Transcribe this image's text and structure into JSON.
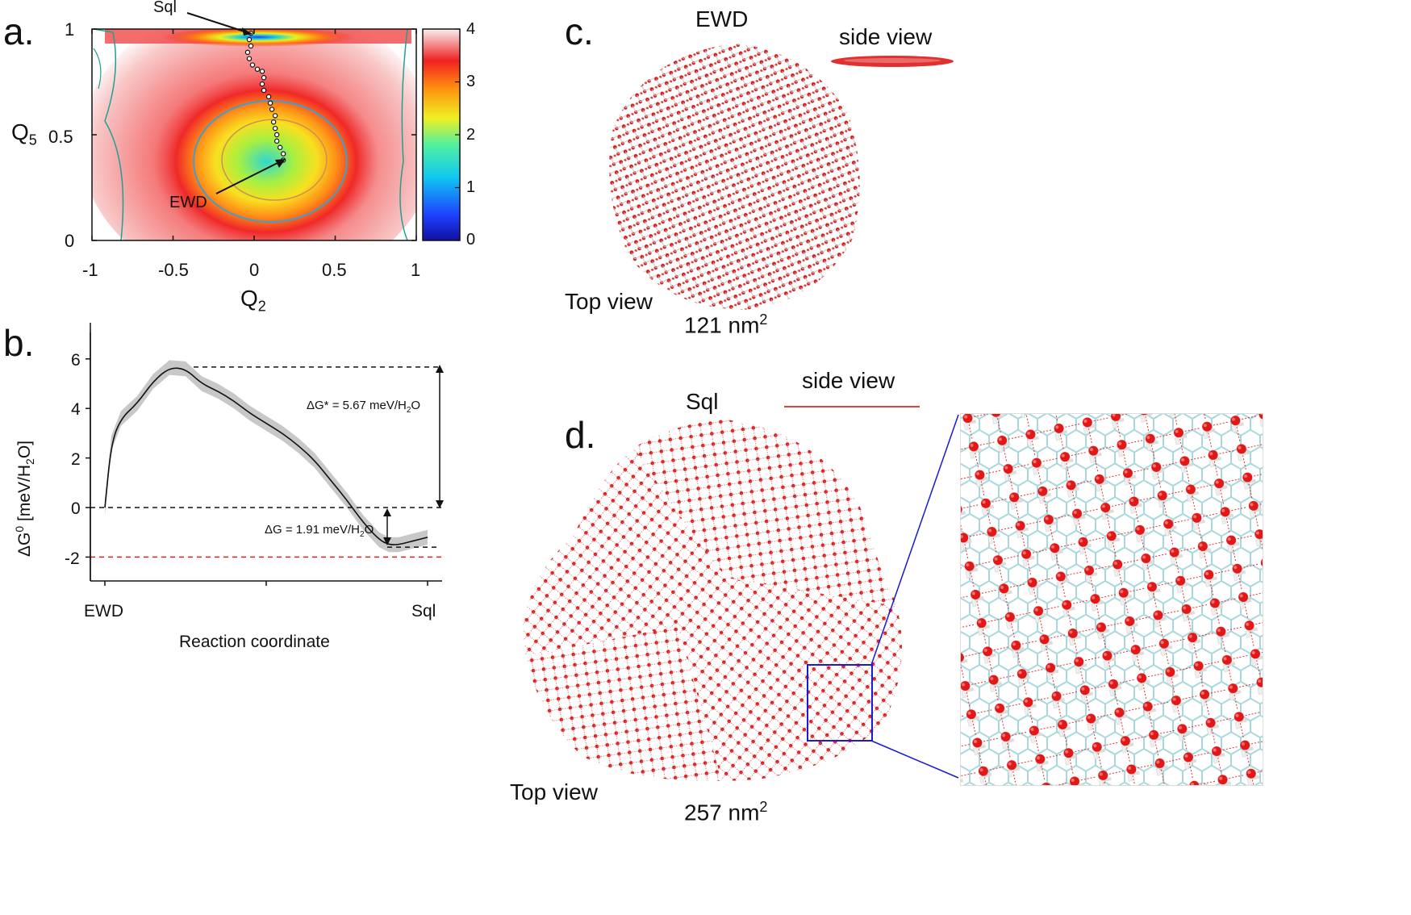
{
  "panels": {
    "a": {
      "label": "a.",
      "chart_data": {
        "type": "heatmap",
        "xlabel": "Q",
        "xlabel_sub": "2",
        "ylabel": "Q",
        "ylabel_sub": "5",
        "xlim": [
          -1,
          1
        ],
        "ylim": [
          0,
          1
        ],
        "xticks": [
          "-1",
          "-0.5",
          "0",
          "0.5",
          "1"
        ],
        "yticks": [
          "0",
          "0.5",
          "1"
        ],
        "colorbar": {
          "min": 0,
          "max": 4,
          "ticks": [
            "0",
            "1",
            "2",
            "3",
            "4"
          ]
        },
        "annotations": [
          {
            "text": "Sql",
            "x": -0.02,
            "y": 0.98
          },
          {
            "text": "EWD",
            "x": 0.18,
            "y": 0.38
          }
        ],
        "path_points": [
          [
            -0.02,
            0.98
          ],
          [
            -0.03,
            0.95
          ],
          [
            -0.02,
            0.92
          ],
          [
            -0.04,
            0.89
          ],
          [
            -0.03,
            0.86
          ],
          [
            -0.01,
            0.83
          ],
          [
            0.02,
            0.81
          ],
          [
            0.05,
            0.8
          ],
          [
            0.06,
            0.77
          ],
          [
            0.05,
            0.74
          ],
          [
            0.06,
            0.71
          ],
          [
            0.09,
            0.68
          ],
          [
            0.1,
            0.65
          ],
          [
            0.11,
            0.62
          ],
          [
            0.13,
            0.59
          ],
          [
            0.12,
            0.56
          ],
          [
            0.13,
            0.53
          ],
          [
            0.14,
            0.5
          ],
          [
            0.14,
            0.47
          ],
          [
            0.16,
            0.44
          ],
          [
            0.18,
            0.41
          ],
          [
            0.18,
            0.38
          ]
        ]
      }
    },
    "b": {
      "label": "b.",
      "chart_data": {
        "type": "line",
        "xlabel": "Reaction coordinate",
        "ylabel": "ΔG",
        "ylabel_sup": "0",
        "ylabel_unit": " [meV/H",
        "ylabel_unit_sub": "2",
        "ylabel_unit_end": "O]",
        "xtick_labels": [
          "EWD",
          "Sql"
        ],
        "ylim": [
          -3,
          7
        ],
        "yticks": [
          "6",
          "4",
          "2",
          "0",
          "-2"
        ],
        "x": [
          0,
          0.02,
          0.05,
          0.1,
          0.15,
          0.2,
          0.25,
          0.3,
          0.35,
          0.4,
          0.45,
          0.5,
          0.55,
          0.6,
          0.65,
          0.7,
          0.75,
          0.8,
          0.85,
          0.88,
          0.91,
          0.94,
          0.97,
          1.0
        ],
        "series": [
          {
            "values": [
              0,
              2.6,
              3.6,
              4.2,
              5.1,
              5.65,
              5.6,
              5.0,
              4.7,
              4.3,
              3.8,
              3.4,
              3.0,
              2.5,
              1.9,
              1.1,
              0.3,
              -0.6,
              -1.3,
              -1.5,
              -1.5,
              -1.4,
              -1.3,
              -1.2
            ]
          }
        ],
        "band_halfwidth": 0.3,
        "reference_lines": [
          {
            "value": 5.67,
            "style": "dashed",
            "color": "#111111"
          },
          {
            "value": 0,
            "style": "dashed",
            "color": "#111111"
          },
          {
            "value": -1.6,
            "style": "dashed",
            "color": "#111111"
          },
          {
            "value": -2.0,
            "style": "dashed",
            "color": "#e02020"
          }
        ],
        "annotations": [
          {
            "text": "ΔG* = 5.67 meV/H",
            "sub": "2",
            "tail": "O"
          },
          {
            "text": "ΔG = 1.91 meV/H",
            "sub": "2",
            "tail": "O"
          }
        ]
      }
    },
    "c": {
      "label": "c.",
      "title": "EWD",
      "side_view": "side view",
      "top_view": "Top view",
      "area": "121 nm",
      "area_sup": "2"
    },
    "d": {
      "label": "d.",
      "title": "Sql",
      "side_view": "side view",
      "top_view": "Top view",
      "area": "257 nm",
      "area_sup": "2"
    }
  },
  "colors": {
    "water_oxygen": "#e01818",
    "hydrogen": "#f0f0f0",
    "graphene": "#a8d8dc",
    "zoom_box": "#1a1ad0",
    "contour": "#20a090"
  }
}
